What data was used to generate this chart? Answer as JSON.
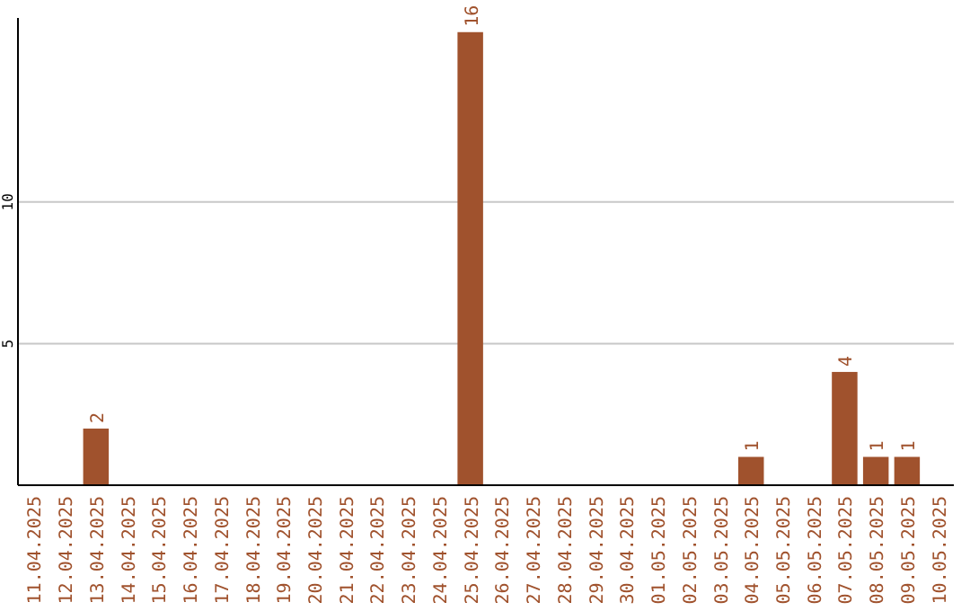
{
  "chart_data": {
    "type": "bar",
    "categories": [
      "11.04.2025",
      "12.04.2025",
      "13.04.2025",
      "14.04.2025",
      "15.04.2025",
      "16.04.2025",
      "17.04.2025",
      "18.04.2025",
      "19.04.2025",
      "20.04.2025",
      "21.04.2025",
      "22.04.2025",
      "23.04.2025",
      "24.04.2025",
      "25.04.2025",
      "26.04.2025",
      "27.04.2025",
      "28.04.2025",
      "29.04.2025",
      "30.04.2025",
      "01.05.2025",
      "02.05.2025",
      "03.05.2025",
      "04.05.2025",
      "05.05.2025",
      "06.05.2025",
      "07.05.2025",
      "08.05.2025",
      "09.05.2025",
      "10.05.2025"
    ],
    "values": [
      0,
      0,
      2,
      0,
      0,
      0,
      0,
      0,
      0,
      0,
      0,
      0,
      0,
      0,
      16,
      0,
      0,
      0,
      0,
      0,
      0,
      0,
      0,
      1,
      0,
      0,
      4,
      1,
      1,
      0
    ],
    "value_labels": [
      null,
      null,
      "2",
      null,
      null,
      null,
      null,
      null,
      null,
      null,
      null,
      null,
      null,
      null,
      "16",
      null,
      null,
      null,
      null,
      null,
      null,
      null,
      null,
      "1",
      null,
      null,
      "4",
      "1",
      "1",
      null
    ],
    "color": "#a0522d",
    "ylim": [
      0,
      16.5
    ],
    "yticks": [
      5,
      10
    ],
    "grid": "y"
  }
}
